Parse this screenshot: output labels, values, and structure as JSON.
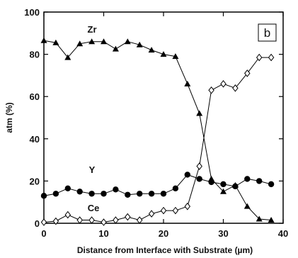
{
  "chart_data": {
    "type": "line",
    "panel_label": "b",
    "xlabel": "Distance from Interface with Substrate (µm)",
    "ylabel": "atm (%)",
    "xlim": [
      0,
      40
    ],
    "ylim": [
      0,
      100
    ],
    "xticks": [
      0,
      10,
      20,
      30,
      40
    ],
    "yticks": [
      0,
      20,
      40,
      60,
      80,
      100
    ],
    "grid": false,
    "legend": "none",
    "series": [
      {
        "name": "Zr",
        "marker": "triangle",
        "color": "#000000",
        "points": [
          [
            0,
            86.5
          ],
          [
            2,
            85.5
          ],
          [
            4,
            78.5
          ],
          [
            6,
            85
          ],
          [
            8,
            86
          ],
          [
            10,
            86
          ],
          [
            12,
            82.5
          ],
          [
            14,
            86
          ],
          [
            16,
            84.5
          ],
          [
            18,
            82
          ],
          [
            20,
            80
          ],
          [
            22,
            79
          ],
          [
            24,
            66
          ],
          [
            26,
            52
          ],
          [
            28,
            21
          ],
          [
            30,
            15
          ],
          [
            32,
            18
          ],
          [
            34,
            8
          ],
          [
            36,
            2
          ],
          [
            38,
            1.5
          ]
        ]
      },
      {
        "name": "Y",
        "marker": "circle",
        "color": "#000000",
        "points": [
          [
            0,
            13
          ],
          [
            2,
            14
          ],
          [
            4,
            16.5
          ],
          [
            6,
            15
          ],
          [
            8,
            14
          ],
          [
            10,
            14
          ],
          [
            12,
            16
          ],
          [
            14,
            13.5
          ],
          [
            16,
            14
          ],
          [
            18,
            14
          ],
          [
            20,
            14
          ],
          [
            22,
            16.5
          ],
          [
            24,
            23
          ],
          [
            26,
            21
          ],
          [
            28,
            19.5
          ],
          [
            30,
            18.5
          ],
          [
            32,
            17.5
          ],
          [
            34,
            21
          ],
          [
            36,
            20
          ],
          [
            38,
            18.5
          ]
        ]
      },
      {
        "name": "Ce",
        "marker": "diamond",
        "color": "#000000",
        "points": [
          [
            0,
            0.5
          ],
          [
            2,
            1
          ],
          [
            4,
            4
          ],
          [
            6,
            1.5
          ],
          [
            8,
            1.5
          ],
          [
            10,
            0.5
          ],
          [
            12,
            1.5
          ],
          [
            14,
            3
          ],
          [
            16,
            1.5
          ],
          [
            18,
            4.5
          ],
          [
            20,
            6
          ],
          [
            22,
            6
          ],
          [
            24,
            8
          ],
          [
            26,
            27
          ],
          [
            28,
            63
          ],
          [
            30,
            66
          ],
          [
            32,
            64
          ],
          [
            34,
            71
          ],
          [
            36,
            78.5
          ],
          [
            38,
            78.5
          ]
        ]
      }
    ]
  }
}
